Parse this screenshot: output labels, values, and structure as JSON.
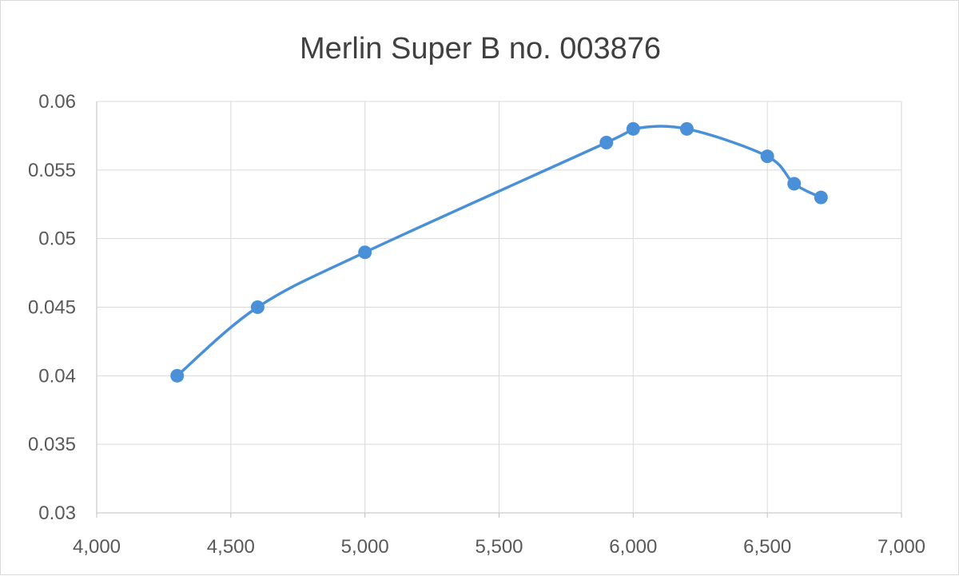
{
  "chart_data": {
    "type": "scatter",
    "title": "Merlin Super B no. 003876",
    "xlabel": "",
    "ylabel": "",
    "xlim": [
      4000,
      7000
    ],
    "ylim": [
      0.03,
      0.06
    ],
    "x_ticks": [
      4000,
      4500,
      5000,
      5500,
      6000,
      6500,
      7000
    ],
    "x_tick_labels": [
      "4,000",
      "4,500",
      "5,000",
      "5,500",
      "6,000",
      "6,500",
      "7,000"
    ],
    "y_ticks": [
      0.03,
      0.035,
      0.04,
      0.045,
      0.05,
      0.055,
      0.06
    ],
    "y_tick_labels": [
      "0.03",
      "0.035",
      "0.04",
      "0.045",
      "0.05",
      "0.055",
      "0.06"
    ],
    "grid": true,
    "smoothed": true,
    "legend": "none",
    "series": [
      {
        "color": "#4a90d9",
        "x": [
          4300,
          4600,
          5000,
          5900,
          6000,
          6200,
          6500,
          6600,
          6700
        ],
        "y": [
          0.04,
          0.045,
          0.049,
          0.057,
          0.058,
          0.058,
          0.056,
          0.054,
          0.053
        ]
      }
    ]
  }
}
